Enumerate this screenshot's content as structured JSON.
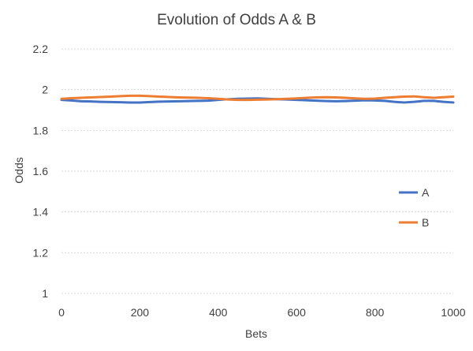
{
  "chart_data": {
    "type": "line",
    "title": "Evolution of Odds A & B",
    "xlabel": "Bets",
    "ylabel": "Odds",
    "xlim": [
      0,
      1000
    ],
    "ylim": [
      1,
      2.2
    ],
    "xticks": [
      "0",
      "200",
      "400",
      "600",
      "800",
      "1000"
    ],
    "yticks": [
      "1",
      "1.2",
      "1.4",
      "1.6",
      "1.8",
      "2",
      "2.2"
    ],
    "grid": "horizontal dashed",
    "legend_position": "right",
    "x": [
      0,
      25,
      50,
      75,
      100,
      125,
      150,
      175,
      200,
      225,
      250,
      275,
      300,
      325,
      350,
      375,
      400,
      425,
      450,
      475,
      500,
      525,
      550,
      575,
      600,
      625,
      650,
      675,
      700,
      725,
      750,
      775,
      800,
      825,
      850,
      875,
      900,
      925,
      950,
      975,
      1000
    ],
    "series": [
      {
        "name": "A",
        "color": "#4472c4",
        "values": [
          1.95,
          1.947,
          1.943,
          1.942,
          1.94,
          1.939,
          1.938,
          1.937,
          1.937,
          1.939,
          1.941,
          1.942,
          1.943,
          1.944,
          1.945,
          1.946,
          1.95,
          1.953,
          1.955,
          1.956,
          1.957,
          1.955,
          1.953,
          1.952,
          1.95,
          1.948,
          1.946,
          1.944,
          1.943,
          1.944,
          1.946,
          1.948,
          1.947,
          1.945,
          1.94,
          1.937,
          1.94,
          1.945,
          1.945,
          1.94,
          1.937
        ]
      },
      {
        "name": "B",
        "color": "#ed7d31",
        "values": [
          1.955,
          1.958,
          1.96,
          1.962,
          1.964,
          1.966,
          1.968,
          1.97,
          1.97,
          1.968,
          1.966,
          1.964,
          1.962,
          1.961,
          1.96,
          1.958,
          1.955,
          1.952,
          1.95,
          1.95,
          1.951,
          1.952,
          1.953,
          1.955,
          1.957,
          1.96,
          1.962,
          1.963,
          1.962,
          1.96,
          1.957,
          1.955,
          1.956,
          1.96,
          1.963,
          1.966,
          1.967,
          1.963,
          1.96,
          1.963,
          1.966
        ]
      }
    ]
  }
}
